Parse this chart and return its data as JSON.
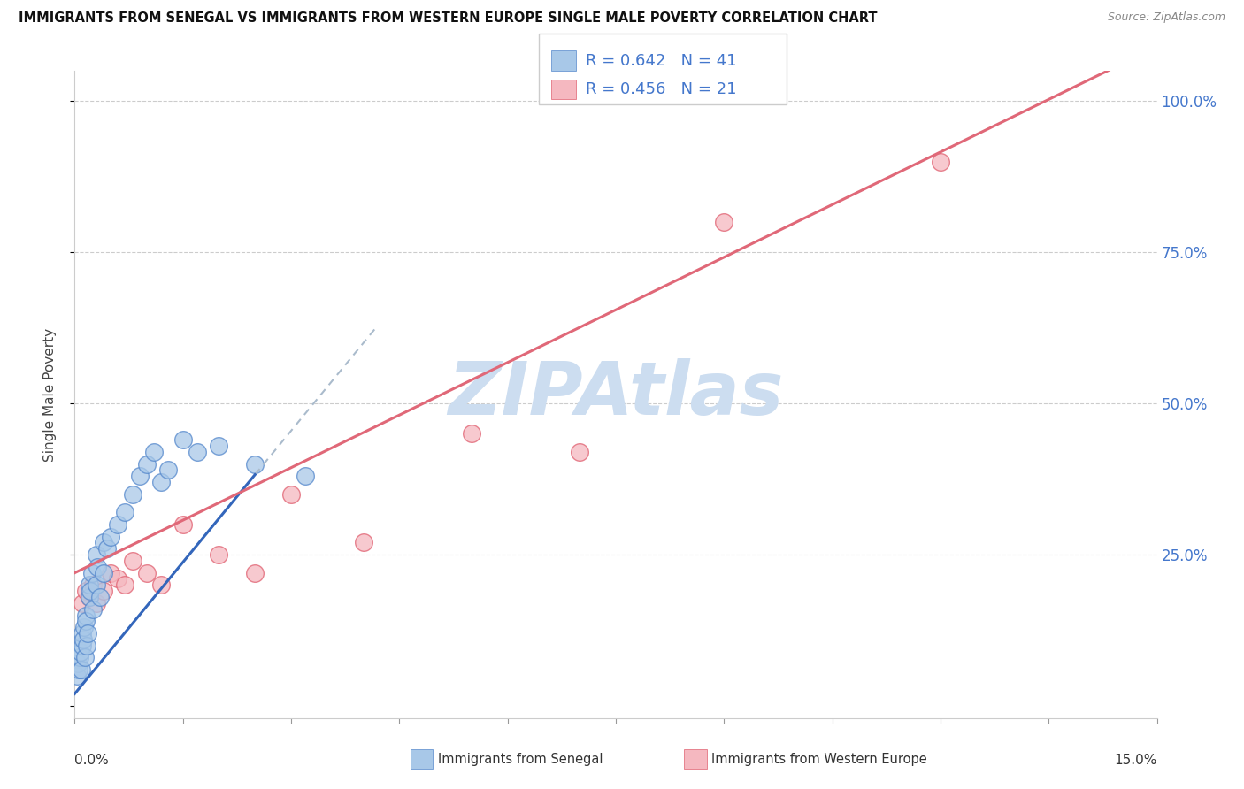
{
  "title": "IMMIGRANTS FROM SENEGAL VS IMMIGRANTS FROM WESTERN EUROPE SINGLE MALE POVERTY CORRELATION CHART",
  "source": "Source: ZipAtlas.com",
  "ylabel": "Single Male Poverty",
  "yticks": [
    0.0,
    0.25,
    0.5,
    0.75,
    1.0
  ],
  "ytick_labels": [
    "",
    "25.0%",
    "50.0%",
    "75.0%",
    "100.0%"
  ],
  "xlim": [
    0.0,
    0.15
  ],
  "ylim": [
    -0.02,
    1.05
  ],
  "color_senegal": "#a8c8e8",
  "color_senegal_edge": "#5588cc",
  "color_western": "#f5b8c0",
  "color_western_edge": "#e06070",
  "color_trendline_senegal": "#3366bb",
  "color_trendline_western": "#e06878",
  "color_dashed": "#aabbcc",
  "watermark": "ZIPAtlas",
  "watermark_color": "#ccddf0",
  "legend_label1": "Immigrants from Senegal",
  "legend_label2": "Immigrants from Western Europe",
  "senegal_x": [
    0.0003,
    0.0005,
    0.0006,
    0.0007,
    0.0008,
    0.0009,
    0.001,
    0.001,
    0.0012,
    0.0013,
    0.0014,
    0.0015,
    0.0016,
    0.0017,
    0.0018,
    0.002,
    0.002,
    0.0022,
    0.0024,
    0.0025,
    0.003,
    0.003,
    0.0032,
    0.0035,
    0.004,
    0.004,
    0.0045,
    0.005,
    0.006,
    0.007,
    0.008,
    0.009,
    0.01,
    0.011,
    0.012,
    0.013,
    0.015,
    0.017,
    0.02,
    0.025,
    0.032
  ],
  "senegal_y": [
    0.05,
    0.07,
    0.06,
    0.08,
    0.09,
    0.06,
    0.1,
    0.12,
    0.11,
    0.13,
    0.08,
    0.15,
    0.14,
    0.1,
    0.12,
    0.18,
    0.2,
    0.19,
    0.22,
    0.16,
    0.2,
    0.25,
    0.23,
    0.18,
    0.22,
    0.27,
    0.26,
    0.28,
    0.3,
    0.32,
    0.35,
    0.38,
    0.4,
    0.42,
    0.37,
    0.39,
    0.44,
    0.42,
    0.43,
    0.4,
    0.38
  ],
  "western_x": [
    0.001,
    0.0015,
    0.002,
    0.0025,
    0.003,
    0.004,
    0.005,
    0.006,
    0.007,
    0.008,
    0.01,
    0.012,
    0.015,
    0.02,
    0.025,
    0.03,
    0.04,
    0.055,
    0.07,
    0.09,
    0.12
  ],
  "western_y": [
    0.17,
    0.19,
    0.18,
    0.2,
    0.17,
    0.19,
    0.22,
    0.21,
    0.2,
    0.24,
    0.22,
    0.2,
    0.3,
    0.25,
    0.22,
    0.35,
    0.27,
    0.45,
    0.42,
    0.8,
    0.9
  ],
  "trendline_senegal_x0": 0.0,
  "trendline_senegal_x1": 0.025,
  "trendline_senegal_slope": 14.5,
  "trendline_senegal_intercept": 0.02,
  "trendline_senegal_dash_x0": 0.025,
  "trendline_senegal_dash_x1": 0.042,
  "trendline_western_x0": 0.0,
  "trendline_western_x1": 0.15,
  "trendline_western_slope": 5.8,
  "trendline_western_intercept": 0.22
}
